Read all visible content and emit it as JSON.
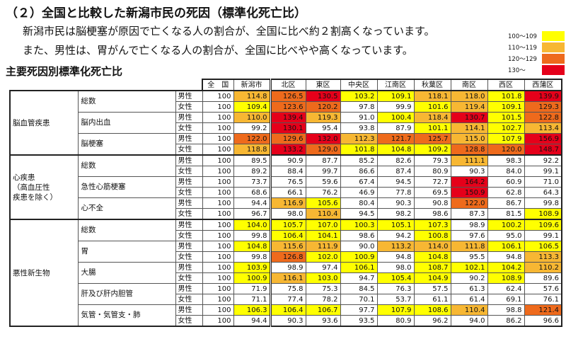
{
  "heading": "（２）全国と比較した新潟市民の死因（標準化死亡比）",
  "intro": [
    "新潟市民は脳梗塞が原因で亡くなる人の割合が、全国に比べ約２割高くなっています。",
    "また、男性は、胃がんで亡くなる人の割合が、全国に比べやや高くなっています。"
  ],
  "legend": [
    {
      "label": "100～109",
      "color": "#ffff00"
    },
    {
      "label": "110～119",
      "color": "#f7b733"
    },
    {
      "label": "120～129",
      "color": "#ee6a1c"
    },
    {
      "label": "130～",
      "color": "#e5001a"
    }
  ],
  "subheading": "主要死因別標準化死亡比",
  "table": {
    "headers": [
      "全　国",
      "新潟市",
      "北区",
      "東区",
      "中央区",
      "江南区",
      "秋葉区",
      "南区",
      "西区",
      "西蒲区"
    ],
    "groups": [
      {
        "name": "脳血管疾患",
        "subs": [
          {
            "name": "総数",
            "rows": [
              {
                "sex": "男性",
                "values": [
                  "100",
                  "114.8",
                  "126.5",
                  "130.5",
                  "103.2",
                  "109.1",
                  "118.1",
                  "118.0",
                  "101.8",
                  "139.9"
                ]
              },
              {
                "sex": "女性",
                "values": [
                  "100",
                  "109.4",
                  "123.6",
                  "120.2",
                  "97.8",
                  "99.9",
                  "101.6",
                  "119.4",
                  "109.1",
                  "129.3"
                ]
              }
            ]
          },
          {
            "name": "脳内出血",
            "rows": [
              {
                "sex": "男性",
                "values": [
                  "100",
                  "110.0",
                  "139.4",
                  "119.3",
                  "91.0",
                  "100.4",
                  "118.4",
                  "130.7",
                  "101.5",
                  "122.8"
                ]
              },
              {
                "sex": "女性",
                "values": [
                  "100",
                  "99.2",
                  "130.1",
                  "95.4",
                  "93.8",
                  "87.9",
                  "101.1",
                  "114.1",
                  "102.7",
                  "113.4"
                ]
              }
            ]
          },
          {
            "name": "脳梗塞",
            "rows": [
              {
                "sex": "男性",
                "values": [
                  "100",
                  "122.0",
                  "129.6",
                  "132.0",
                  "112.3",
                  "121.7",
                  "125.7",
                  "115.0",
                  "107.9",
                  "156.9"
                ]
              },
              {
                "sex": "女性",
                "values": [
                  "100",
                  "118.8",
                  "133.2",
                  "129.0",
                  "101.8",
                  "104.8",
                  "109.2",
                  "128.8",
                  "120.0",
                  "148.7"
                ]
              }
            ]
          }
        ]
      },
      {
        "name": "心疾患（高血圧性疾患を除く）",
        "name_lines": [
          "心疾患",
          "（高血圧性",
          "疾患を除く）"
        ],
        "subs": [
          {
            "name": "総数",
            "rows": [
              {
                "sex": "男性",
                "values": [
                  "100",
                  "89.5",
                  "90.9",
                  "87.7",
                  "85.2",
                  "82.6",
                  "79.3",
                  "111.1",
                  "98.3",
                  "92.2"
                ]
              },
              {
                "sex": "女性",
                "values": [
                  "100",
                  "89.2",
                  "88.4",
                  "99.7",
                  "86.6",
                  "87.4",
                  "80.9",
                  "90.3",
                  "84.0",
                  "99.1"
                ]
              }
            ]
          },
          {
            "name": "急性心筋梗塞",
            "rows": [
              {
                "sex": "男性",
                "values": [
                  "100",
                  "73.7",
                  "76.5",
                  "59.6",
                  "67.4",
                  "94.5",
                  "72.7",
                  "164.2",
                  "60.9",
                  "71.0"
                ]
              },
              {
                "sex": "女性",
                "values": [
                  "100",
                  "68.6",
                  "66.1",
                  "76.2",
                  "46.9",
                  "77.8",
                  "69.5",
                  "150.9",
                  "62.8",
                  "64.3"
                ]
              }
            ]
          },
          {
            "name": "心不全",
            "rows": [
              {
                "sex": "男性",
                "values": [
                  "100",
                  "94.4",
                  "116.9",
                  "105.6",
                  "80.4",
                  "90.3",
                  "90.8",
                  "122.0",
                  "86.7",
                  "99.8"
                ]
              },
              {
                "sex": "女性",
                "values": [
                  "100",
                  "96.7",
                  "98.0",
                  "110.4",
                  "94.5",
                  "98.2",
                  "98.6",
                  "87.3",
                  "81.5",
                  "108.9"
                ]
              }
            ]
          }
        ]
      },
      {
        "name": "悪性新生物",
        "subs": [
          {
            "name": "総数",
            "rows": [
              {
                "sex": "男性",
                "values": [
                  "100",
                  "104.0",
                  "105.7",
                  "107.0",
                  "100.3",
                  "105.1",
                  "107.3",
                  "98.9",
                  "100.2",
                  "109.6"
                ]
              },
              {
                "sex": "女性",
                "values": [
                  "100",
                  "99.8",
                  "106.4",
                  "104.1",
                  "98.6",
                  "94.2",
                  "100.8",
                  "97.6",
                  "95.0",
                  "99.1"
                ]
              }
            ]
          },
          {
            "name": "胃",
            "rows": [
              {
                "sex": "男性",
                "values": [
                  "100",
                  "104.8",
                  "115.6",
                  "111.9",
                  "90.0",
                  "113.2",
                  "114.0",
                  "111.8",
                  "106.1",
                  "106.5"
                ]
              },
              {
                "sex": "女性",
                "values": [
                  "100",
                  "99.8",
                  "126.8",
                  "102.0",
                  "100.9",
                  "94.8",
                  "104.8",
                  "95.5",
                  "94.8",
                  "113.3"
                ]
              }
            ]
          },
          {
            "name": "大腸",
            "rows": [
              {
                "sex": "男性",
                "values": [
                  "100",
                  "103.9",
                  "98.9",
                  "97.4",
                  "106.1",
                  "98.0",
                  "108.7",
                  "102.1",
                  "104.2",
                  "110.2"
                ]
              },
              {
                "sex": "女性",
                "values": [
                  "100",
                  "100.9",
                  "116.1",
                  "103.0",
                  "94.7",
                  "105.4",
                  "104.9",
                  "90.2",
                  "108.9",
                  "89.6"
                ]
              }
            ]
          },
          {
            "name": "肝及び肝内胆管",
            "rows": [
              {
                "sex": "男性",
                "values": [
                  "100",
                  "71.9",
                  "75.8",
                  "75.3",
                  "84.5",
                  "76.3",
                  "57.5",
                  "61.3",
                  "62.4",
                  "57.6"
                ]
              },
              {
                "sex": "女性",
                "values": [
                  "100",
                  "71.1",
                  "77.4",
                  "78.2",
                  "70.1",
                  "53.7",
                  "61.1",
                  "61.4",
                  "69.1",
                  "76.1"
                ]
              }
            ]
          },
          {
            "name": "気管・気管支・肺",
            "rows": [
              {
                "sex": "男性",
                "values": [
                  "100",
                  "106.3",
                  "106.4",
                  "106.7",
                  "97.7",
                  "107.9",
                  "108.6",
                  "110.4",
                  "98.8",
                  "121.4"
                ]
              },
              {
                "sex": "女性",
                "values": [
                  "100",
                  "94.4",
                  "90.3",
                  "93.6",
                  "93.5",
                  "80.9",
                  "96.2",
                  "94.0",
                  "86.2",
                  "96.6"
                ]
              }
            ]
          }
        ]
      }
    ]
  }
}
